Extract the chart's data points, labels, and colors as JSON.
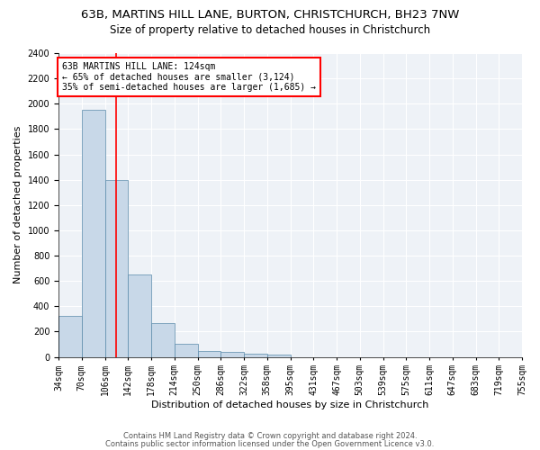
{
  "title1": "63B, MARTINS HILL LANE, BURTON, CHRISTCHURCH, BH23 7NW",
  "title2": "Size of property relative to detached houses in Christchurch",
  "xlabel": "Distribution of detached houses by size in Christchurch",
  "ylabel": "Number of detached properties",
  "footer1": "Contains HM Land Registry data © Crown copyright and database right 2024.",
  "footer2": "Contains public sector information licensed under the Open Government Licence v3.0.",
  "bin_labels": [
    "34sqm",
    "70sqm",
    "106sqm",
    "142sqm",
    "178sqm",
    "214sqm",
    "250sqm",
    "286sqm",
    "322sqm",
    "358sqm",
    "395sqm",
    "431sqm",
    "467sqm",
    "503sqm",
    "539sqm",
    "575sqm",
    "611sqm",
    "647sqm",
    "683sqm",
    "719sqm",
    "755sqm"
  ],
  "bar_values": [
    325,
    1950,
    1400,
    650,
    270,
    100,
    45,
    38,
    25,
    15,
    0,
    0,
    0,
    0,
    0,
    0,
    0,
    0,
    0,
    0
  ],
  "bar_color": "#c8d8e8",
  "bar_edge_color": "#5a8aaa",
  "vline_color": "red",
  "annotation_text": "63B MARTINS HILL LANE: 124sqm\n← 65% of detached houses are smaller (3,124)\n35% of semi-detached houses are larger (1,685) →",
  "annotation_box_color": "white",
  "annotation_box_edge_color": "red",
  "ylim": [
    0,
    2400
  ],
  "yticks": [
    0,
    200,
    400,
    600,
    800,
    1000,
    1200,
    1400,
    1600,
    1800,
    2000,
    2200,
    2400
  ],
  "background_color": "#eef2f7",
  "grid_color": "white",
  "title1_fontsize": 9.5,
  "title2_fontsize": 8.5,
  "xlabel_fontsize": 8,
  "ylabel_fontsize": 8,
  "tick_fontsize": 7,
  "annotation_fontsize": 7,
  "footer_fontsize": 6
}
